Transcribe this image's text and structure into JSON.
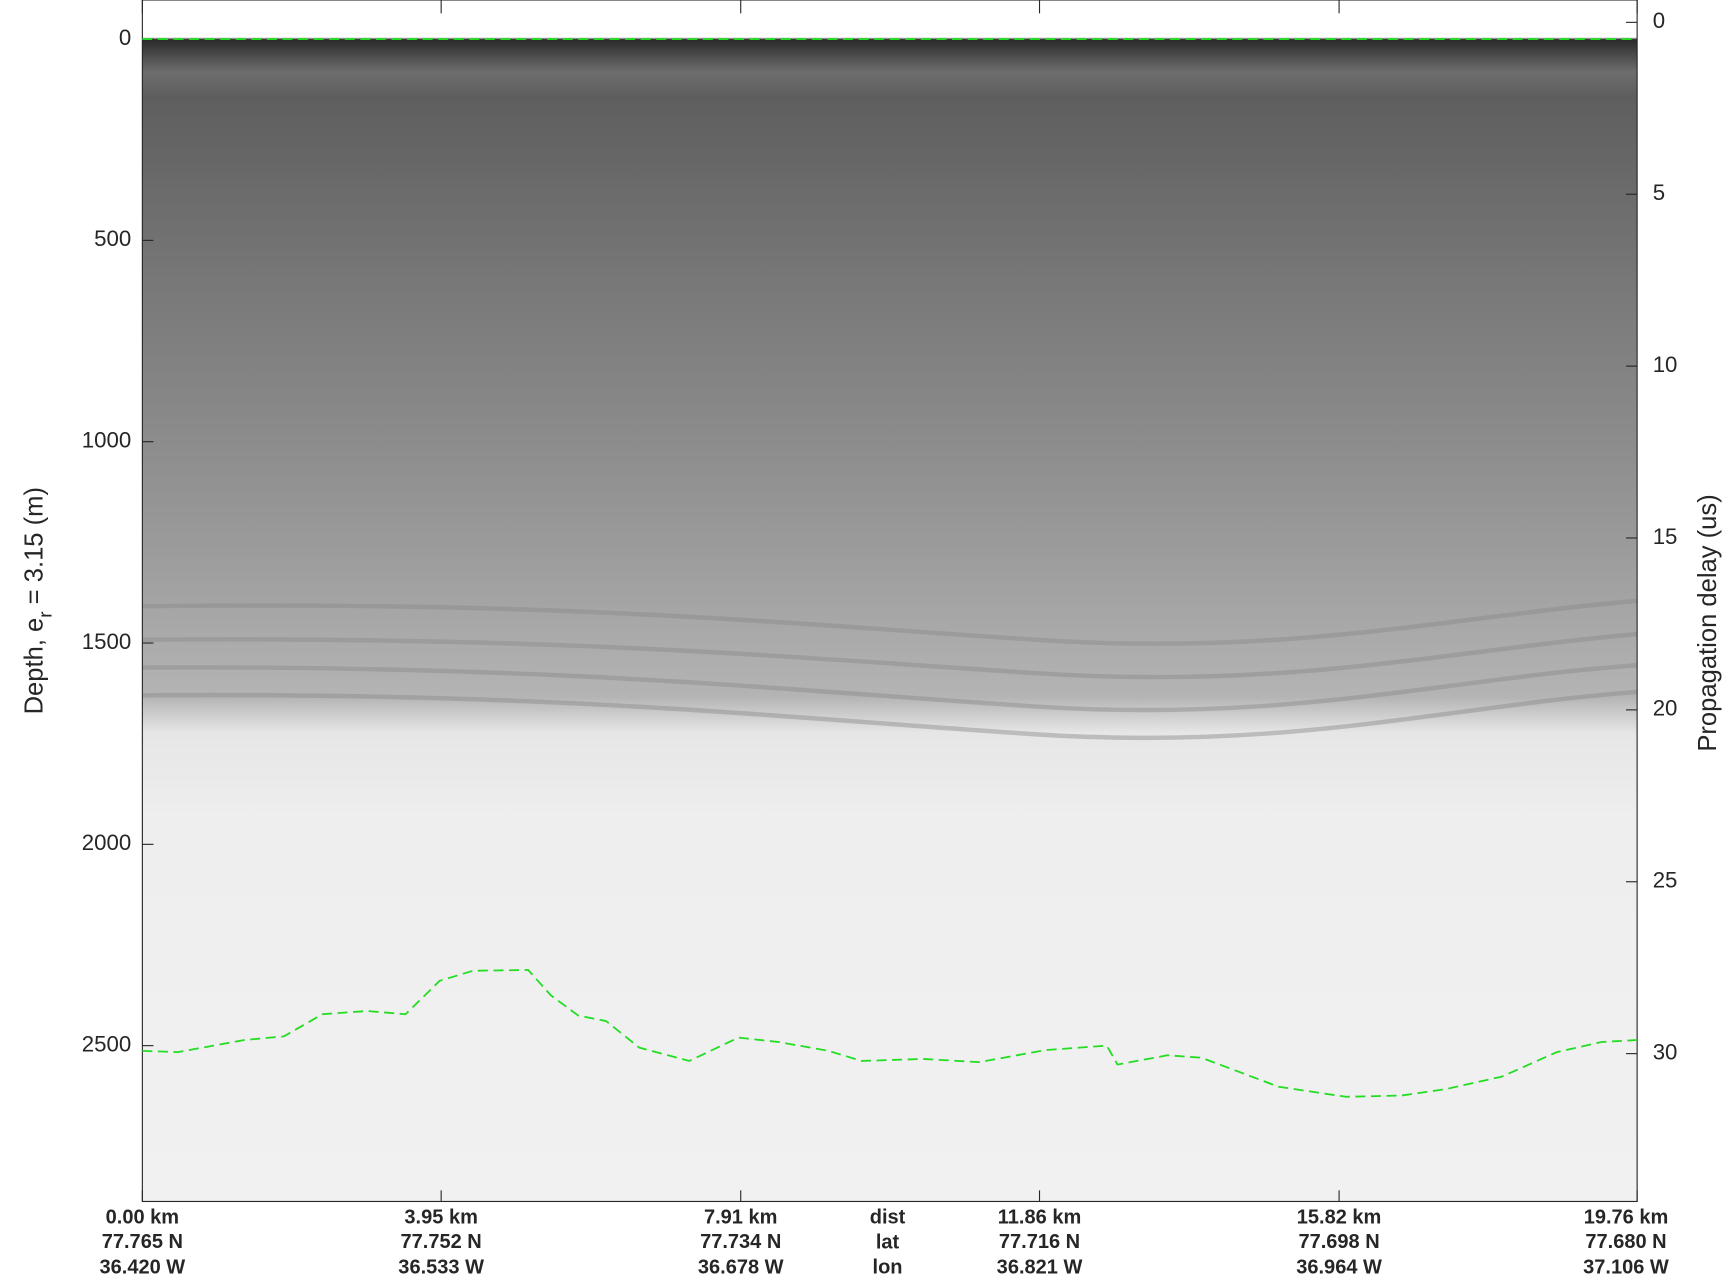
{
  "chart_data": {
    "type": "echogram",
    "ylabel": {
      "main": "Depth, e",
      "sub": "r",
      "rest": " = 3.15 (m)"
    },
    "y2label": "Propagation delay (us)",
    "xlim": [
      0,
      19.76
    ],
    "ylim": [
      2887,
      -97
    ],
    "y2lim": [
      34.3,
      -0.65
    ],
    "yticks": [
      0,
      500,
      1000,
      1500,
      2000,
      2500
    ],
    "y2ticks": [
      0,
      5,
      10,
      15,
      20,
      25,
      30
    ],
    "xticks": [
      {
        "value": 0,
        "label": "0.00 km"
      },
      {
        "value": 3.95,
        "label": "3.95 km"
      },
      {
        "value": 7.91,
        "label": "7.91 km"
      },
      {
        "value": 11.86,
        "label": "11.86 km"
      },
      {
        "value": 15.82,
        "label": "15.82 km"
      },
      {
        "value": 19.76,
        "label": "19.76 km"
      }
    ],
    "lat_labels": [
      "77.765 N",
      "77.752 N",
      "77.734 N",
      "77.716 N",
      "77.698 N",
      "77.680 N"
    ],
    "lon_labels": [
      "36.420 W",
      "36.533 W",
      "36.678 W",
      "36.821 W",
      "36.964 W",
      "37.106 W"
    ],
    "row_labels": [
      "dist",
      "lat",
      "lon"
    ],
    "series": [
      {
        "name": "surface",
        "color": "#22dd22",
        "x": [
          0,
          19.76
        ],
        "values": [
          0,
          0
        ]
      },
      {
        "name": "bottom",
        "color": "#22dd22",
        "x": [
          0,
          0.47,
          1.35,
          1.87,
          2.38,
          2.97,
          3.48,
          3.93,
          4.37,
          5.1,
          5.4,
          5.76,
          6.13,
          6.57,
          7.23,
          7.88,
          8.41,
          9.07,
          9.51,
          10.32,
          11.06,
          11.94,
          12.75,
          12.89,
          13.55,
          14.0,
          15.02,
          15.91,
          16.64,
          17.23,
          17.97,
          18.7,
          19.29,
          19.76
        ],
        "values": [
          2513,
          2516,
          2486,
          2477,
          2422,
          2414,
          2422,
          2339,
          2314,
          2312,
          2375,
          2425,
          2439,
          2505,
          2538,
          2480,
          2491,
          2513,
          2538,
          2533,
          2541,
          2511,
          2500,
          2547,
          2524,
          2530,
          2602,
          2627,
          2624,
          2608,
          2577,
          2516,
          2491,
          2486
        ]
      }
    ]
  }
}
